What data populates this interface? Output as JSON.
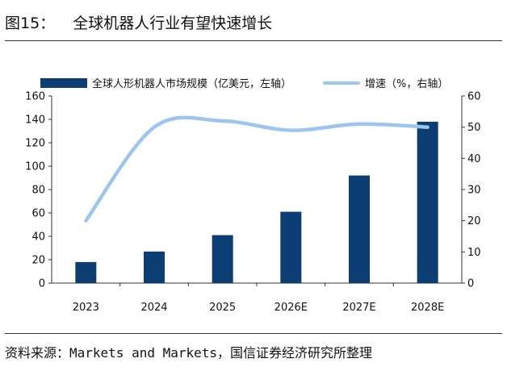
{
  "figure": {
    "number": "图15：",
    "title": "全球机器人行业有望快速增长"
  },
  "source": {
    "prefix": "资料来源：",
    "refs": "Markets and Markets",
    "suffix": "，国信证券经济研究所整理"
  },
  "colors": {
    "bar": "#0c3d73",
    "line": "#9dc6ee",
    "axis": "#333333"
  },
  "chart_data": {
    "type": "bar",
    "categories": [
      "2023",
      "2024",
      "2025",
      "2026E",
      "2027E",
      "2028E"
    ],
    "series": [
      {
        "name": "全球人形机器人市场规模（亿美元，左轴）",
        "type": "bar",
        "axis": "left",
        "values": [
          18,
          27,
          41,
          61,
          92,
          138
        ]
      },
      {
        "name": "增速（%，右轴）",
        "type": "line",
        "axis": "right",
        "values": [
          20,
          50,
          52,
          49,
          51,
          50
        ]
      }
    ],
    "y_left": {
      "min": 0,
      "max": 160,
      "ticks": [
        0,
        20,
        40,
        60,
        80,
        100,
        120,
        140,
        160
      ]
    },
    "y_right": {
      "min": 0,
      "max": 60,
      "ticks": [
        0,
        10,
        20,
        30,
        40,
        50,
        60
      ]
    },
    "legend_position": "top",
    "grid": false
  }
}
